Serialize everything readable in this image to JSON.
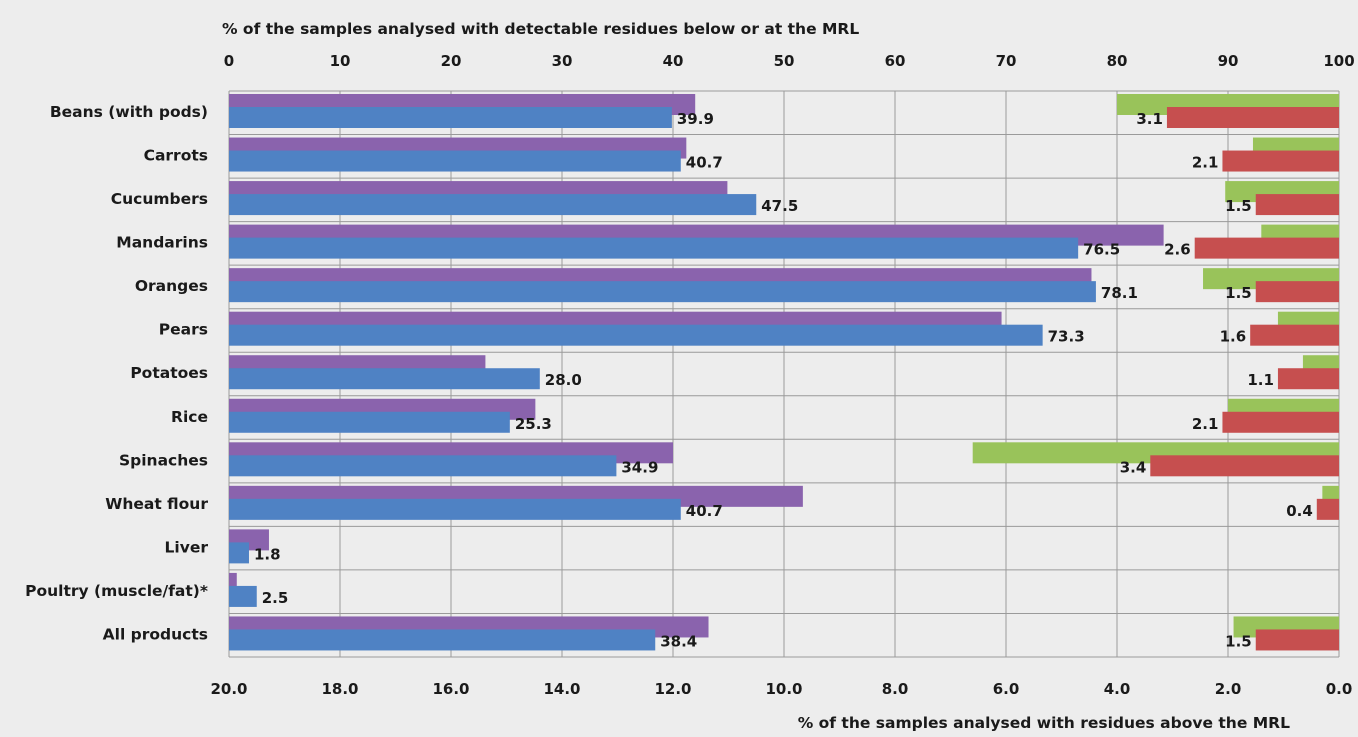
{
  "chart_data": {
    "type": "bar",
    "top_axis_label": "% of the samples analysed with detectable residues below or at the MRL",
    "bottom_axis_label": "% of the samples analysed with residues above the MRL",
    "top_axis": {
      "min": 0,
      "max": 100,
      "ticks": [
        "0",
        "10",
        "20",
        "30",
        "40",
        "50",
        "60",
        "70",
        "80",
        "90",
        "100"
      ]
    },
    "bottom_axis": {
      "min": 0,
      "max": 20,
      "reversed": true,
      "ticks": [
        "20.0",
        "18.0",
        "16.0",
        "14.0",
        "12.0",
        "10.0",
        "8.0",
        "6.0",
        "4.0",
        "2.0",
        "0.0"
      ]
    },
    "grid": true,
    "colors": {
      "purple": "#8a63ad",
      "blue": "#4f82c4",
      "green": "#99c35a",
      "red": "#c64f4f",
      "background": "#ededed",
      "grid": "#9a9a9a"
    },
    "categories": [
      "Beans (with pods)",
      "Carrots",
      "Cucumbers",
      "Mandarins",
      "Oranges",
      "Pears",
      "Potatoes",
      "Rice",
      "Spinaches",
      "Wheat flour",
      "Liver",
      "Poultry (muscle/fat)*",
      "All products"
    ],
    "series": [
      {
        "color_key": "purple",
        "axis": "top",
        "values": [
          42.0,
          41.2,
          44.9,
          84.2,
          77.7,
          69.6,
          23.1,
          27.6,
          40.0,
          51.7,
          3.6,
          0.7,
          43.2
        ]
      },
      {
        "color_key": "blue",
        "axis": "top",
        "values": [
          39.9,
          40.7,
          47.5,
          76.5,
          78.1,
          73.3,
          28.0,
          25.3,
          34.9,
          40.7,
          1.8,
          2.5,
          38.4
        ]
      },
      {
        "color_key": "green",
        "axis": "bottom",
        "values": [
          4.0,
          1.55,
          2.05,
          1.4,
          2.45,
          1.1,
          0.65,
          2.0,
          6.6,
          0.3,
          0.0,
          0.0,
          1.9
        ]
      },
      {
        "color_key": "red",
        "axis": "bottom",
        "values": [
          3.1,
          2.1,
          1.5,
          2.6,
          1.5,
          1.6,
          1.1,
          2.1,
          3.4,
          0.4,
          0.0,
          0.0,
          1.5
        ]
      }
    ],
    "data_labels": [
      {
        "blue": "39.9",
        "red": "3.1"
      },
      {
        "blue": "40.7",
        "red": "2.1"
      },
      {
        "blue": "47.5",
        "red": "1.5"
      },
      {
        "blue": "76.5",
        "red": "2.6"
      },
      {
        "blue": "78.1",
        "red": "1.5"
      },
      {
        "blue": "73.3",
        "red": "1.6"
      },
      {
        "blue": "28.0",
        "red": "1.1"
      },
      {
        "blue": "25.3",
        "red": "2.1"
      },
      {
        "blue": "34.9",
        "red": "3.4"
      },
      {
        "blue": "40.7",
        "red": "0.4"
      },
      {
        "blue": "1.8",
        "red": ""
      },
      {
        "blue": "2.5",
        "red": ""
      },
      {
        "blue": "38.4",
        "red": "1.5"
      }
    ]
  }
}
